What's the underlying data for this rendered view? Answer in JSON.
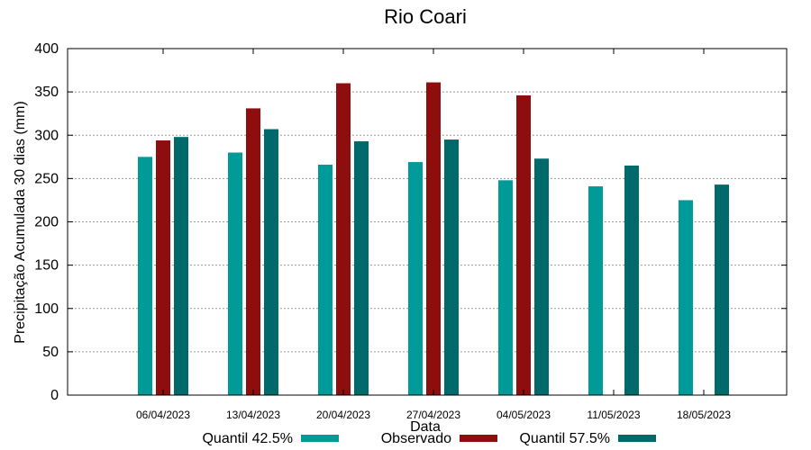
{
  "chart_data": {
    "type": "bar",
    "title": "Rio Coari",
    "xlabel": "Data",
    "ylabel": "Precipitação Acumulada 30 dias (mm)",
    "ylim": [
      0,
      400
    ],
    "yticks": [
      0,
      50,
      100,
      150,
      200,
      250,
      300,
      350,
      400
    ],
    "grid": true,
    "legend_position": "bottom",
    "categories": [
      "06/04/2023",
      "13/04/2023",
      "20/04/2023",
      "27/04/2023",
      "04/05/2023",
      "11/05/2023",
      "18/05/2023"
    ],
    "series": [
      {
        "name": "Quantil 42.5%",
        "color": "#009a99",
        "values": [
          275,
          280,
          266,
          269,
          248,
          241,
          225
        ]
      },
      {
        "name": "Observado",
        "color": "#8e0e0e",
        "values": [
          294,
          331,
          360,
          361,
          346,
          null,
          null
        ]
      },
      {
        "name": "Quantil 57.5%",
        "color": "#006a6a",
        "values": [
          298,
          307,
          293,
          295,
          273,
          265,
          243
        ]
      }
    ]
  }
}
